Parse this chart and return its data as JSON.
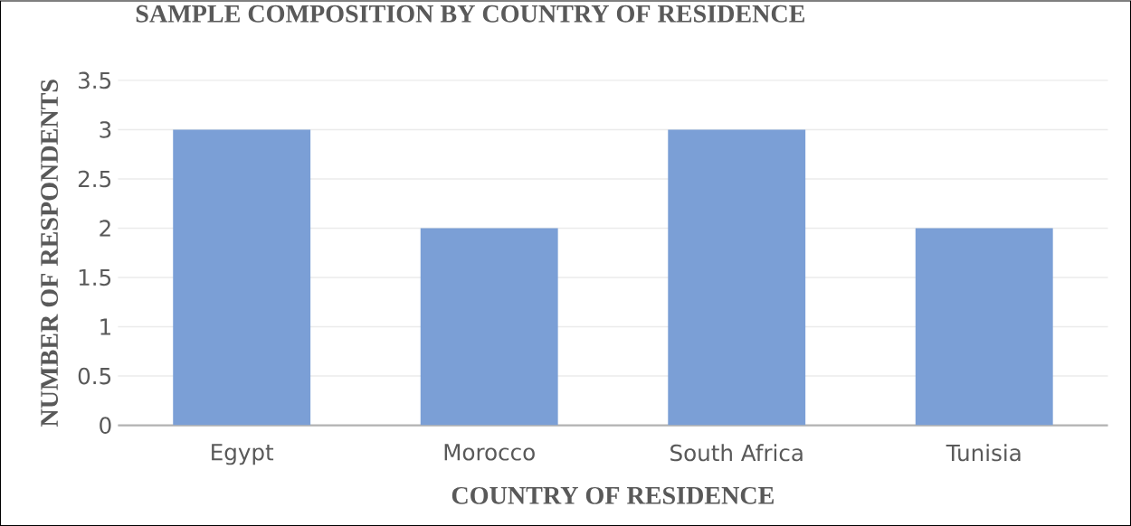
{
  "chart_data": {
    "type": "bar",
    "title": "SAMPLE COMPOSITION BY COUNTRY OF RESIDENCE",
    "xlabel": "COUNTRY OF RESIDENCE",
    "ylabel": "NUMBER OF RESPONDENTS",
    "categories": [
      "Egypt",
      "Morocco",
      "South Africa",
      "Tunisia"
    ],
    "values": [
      3,
      2,
      3,
      2
    ],
    "color": "#7b9fd6",
    "ylim": [
      0,
      3.5
    ],
    "yticks": [
      0,
      0.5,
      1,
      1.5,
      2,
      2.5,
      3,
      3.5
    ],
    "grid": "y"
  }
}
